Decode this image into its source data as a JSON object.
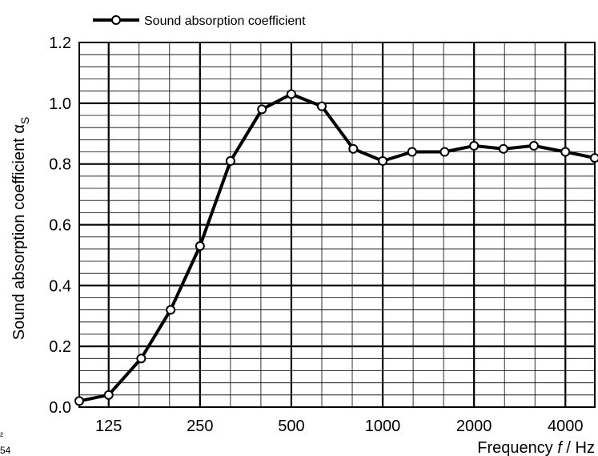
{
  "chart_data": {
    "type": "line",
    "legend": {
      "label": "Sound absorption coefficient",
      "placement": "top-left"
    },
    "xlabel": {
      "prefix": "Frequency ",
      "var": "f",
      "suffix": " / Hz"
    },
    "ylabel": {
      "main": "Sound absorption coefficient α",
      "sub": "S"
    },
    "x_scale": "log",
    "xlim": [
      100,
      5000
    ],
    "ylim": [
      0,
      1.2
    ],
    "y_ticks": [
      "0.0",
      "0.2",
      "0.4",
      "0.6",
      "0.8",
      "1.0",
      "1.2"
    ],
    "x_ticks": [
      {
        "value": 125,
        "label": "125"
      },
      {
        "value": 250,
        "label": "250"
      },
      {
        "value": 500,
        "label": "500"
      },
      {
        "value": 1000,
        "label": "1000"
      },
      {
        "value": 2000,
        "label": "2000"
      },
      {
        "value": 4000,
        "label": "4000"
      }
    ],
    "grid": true,
    "series": [
      {
        "name": "Sound absorption coefficient",
        "x": [
          100,
          125,
          160,
          200,
          250,
          315,
          400,
          500,
          630,
          800,
          1000,
          1250,
          1600,
          2000,
          2500,
          3150,
          4000,
          5000
        ],
        "y": [
          0.02,
          0.04,
          0.16,
          0.32,
          0.53,
          0.81,
          0.98,
          1.03,
          0.99,
          0.85,
          0.81,
          0.84,
          0.84,
          0.86,
          0.85,
          0.86,
          0.84,
          0.82
        ]
      }
    ]
  },
  "fragments": {
    "left_top": "²",
    "left_bottom": "54"
  }
}
